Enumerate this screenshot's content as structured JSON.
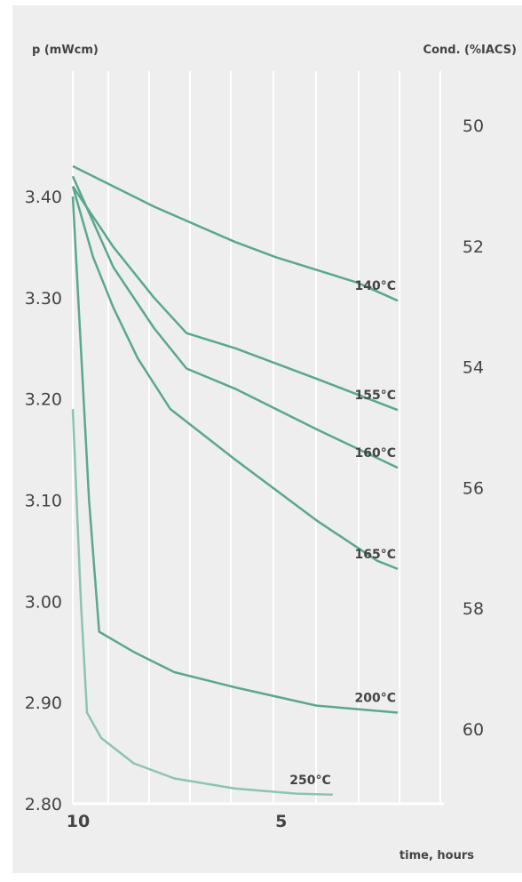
{
  "chart_data": {
    "type": "line",
    "title": "",
    "y_left_label": "p (mWcm)",
    "y_right_label": "Cond. (%IACS)",
    "xlabel": "time, hours",
    "x_ticks": [
      "10",
      "5"
    ],
    "y_left_ticks": [
      "3.40",
      "3.30",
      "3.20",
      "3.10",
      "3.00",
      "2.90",
      "2.80"
    ],
    "y_right_ticks": [
      "50",
      "52",
      "54",
      "56",
      "58",
      "60"
    ],
    "grid": true,
    "series": [
      {
        "name": "140°C",
        "color": "#5aa88c",
        "x": [
          10,
          8,
          6,
          5,
          3,
          2
        ],
        "y": [
          3.43,
          3.39,
          3.355,
          3.34,
          3.315,
          3.297
        ]
      },
      {
        "name": "155°C",
        "color": "#5aa88c",
        "x": [
          10,
          9,
          8,
          7.2,
          6,
          4,
          2
        ],
        "y": [
          3.41,
          3.35,
          3.3,
          3.265,
          3.25,
          3.22,
          3.189
        ]
      },
      {
        "name": "160°C",
        "color": "#5aa88c",
        "x": [
          10,
          9,
          8,
          7.2,
          6,
          4,
          2
        ],
        "y": [
          3.42,
          3.33,
          3.27,
          3.23,
          3.21,
          3.17,
          3.132
        ]
      },
      {
        "name": "165°C",
        "color": "#5aa88c",
        "x": [
          10,
          9.5,
          9,
          8.4,
          7.6,
          6,
          4,
          2.5,
          2
        ],
        "y": [
          3.41,
          3.34,
          3.29,
          3.24,
          3.19,
          3.14,
          3.08,
          3.04,
          3.032
        ]
      },
      {
        "name": "200°C",
        "color": "#5aa88c",
        "x": [
          10,
          9.6,
          9.35,
          8.5,
          7.5,
          6,
          4,
          2
        ],
        "y": [
          3.4,
          3.1,
          2.97,
          2.95,
          2.93,
          2.915,
          2.897,
          2.89
        ]
      },
      {
        "name": "250°C",
        "color": "#8cc4ae",
        "x": [
          10,
          9.8,
          9.65,
          9.3,
          8.5,
          7.5,
          6,
          4.5,
          3.6
        ],
        "y": [
          3.19,
          3.0,
          2.89,
          2.865,
          2.84,
          2.825,
          2.815,
          2.81,
          2.809
        ]
      }
    ]
  }
}
